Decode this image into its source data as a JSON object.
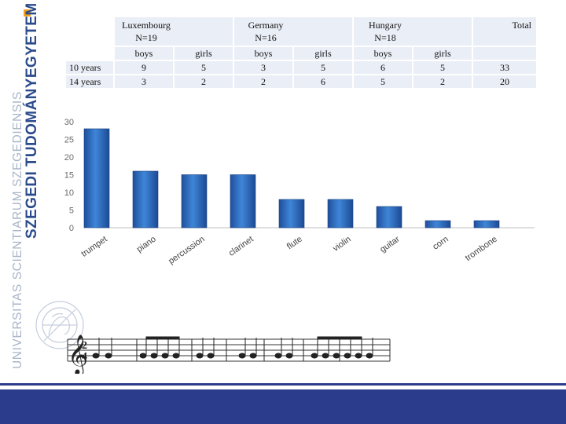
{
  "branding": {
    "university_name": "SZEGEDI TUDOMÁNYEGYETEM",
    "latin_name": "UNIVERSITAS SCIENTIARUM SZEGEDIENSIS",
    "brand_color": "#2b4b8c",
    "accent_color": "#f2a01e"
  },
  "table": {
    "groups": [
      {
        "country": "Luxembourg",
        "n": "N=19"
      },
      {
        "country": "Germany",
        "n": "N=16"
      },
      {
        "country": "Hungary",
        "n": "N=18"
      }
    ],
    "total_label": "Total",
    "sub_labels": [
      "boys",
      "girls",
      "boys",
      "girls",
      "boys",
      "girls"
    ],
    "rows": [
      {
        "label": "10 years",
        "values": [
          "9",
          "5",
          "3",
          "5",
          "6",
          "5"
        ],
        "total": "33"
      },
      {
        "label": "14 years",
        "values": [
          "3",
          "2",
          "2",
          "6",
          "5",
          "2"
        ],
        "total": "20"
      }
    ]
  },
  "chart_data": {
    "type": "bar",
    "categories": [
      "trumpet",
      "piano",
      "percussion",
      "clarinet",
      "flute",
      "violin",
      "guitar",
      "corn",
      "trombone"
    ],
    "values": [
      28,
      16,
      15,
      15,
      8,
      8,
      6,
      2,
      2
    ],
    "yticks": [
      "30",
      "25",
      "20",
      "15",
      "10",
      "5",
      "0"
    ],
    "ylim": [
      0,
      30
    ],
    "grid": false,
    "bar_color": "#2e6bc4"
  },
  "music": {
    "time_signature_top": "2",
    "time_signature_bottom": "4"
  }
}
